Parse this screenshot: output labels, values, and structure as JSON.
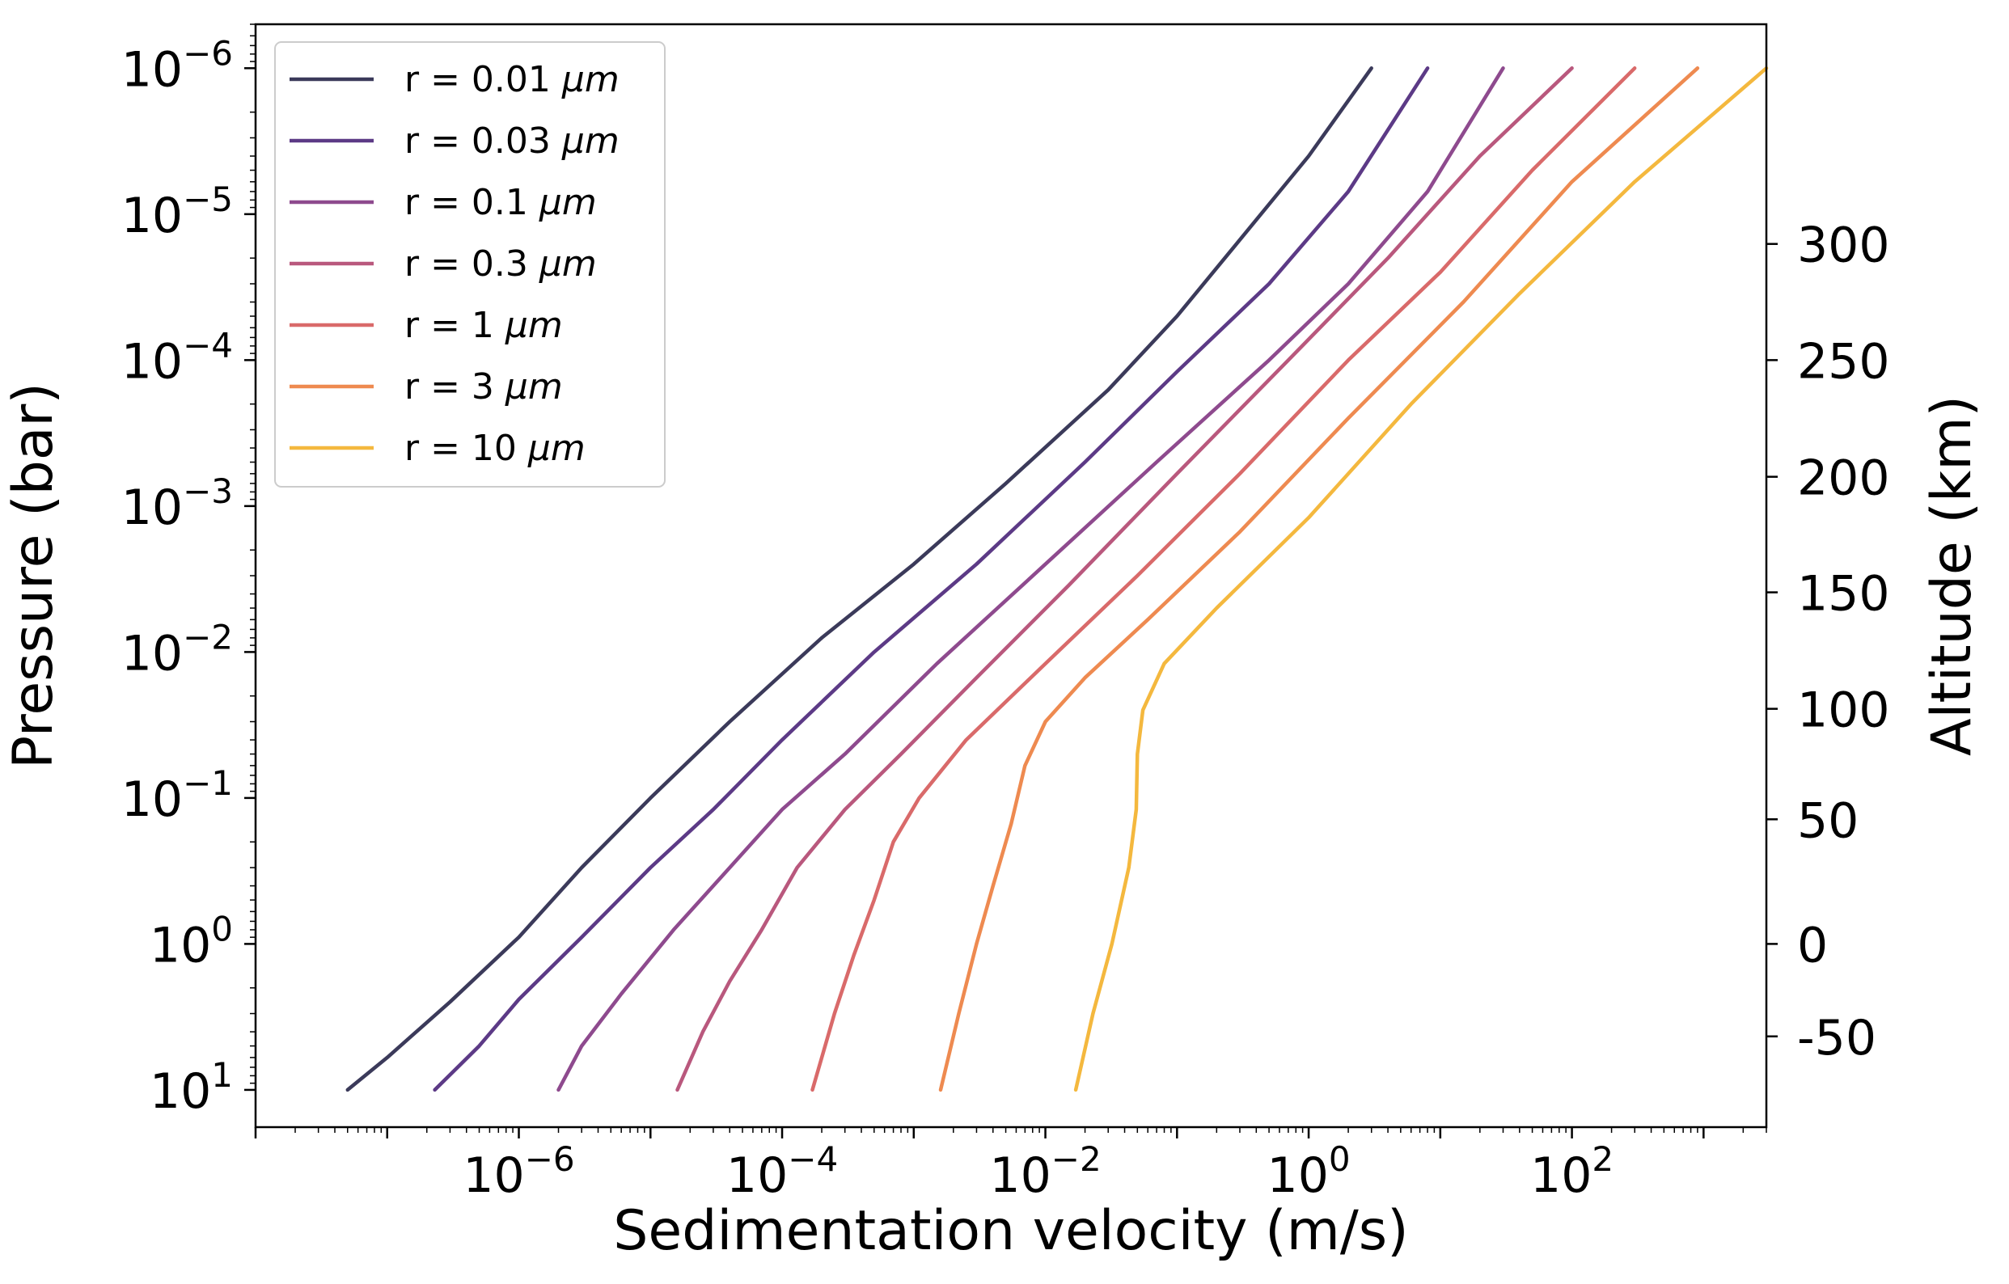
{
  "chart_data": {
    "type": "line",
    "title": "",
    "xlabel": "Sedimentation velocity (m/s)",
    "ylabel": "Pressure (bar)",
    "y2label": "Altitude (km)",
    "xscale": "log",
    "yscale": "log",
    "yinverted": true,
    "xlim": [
      1e-08,
      3000
    ],
    "ylim": [
      18,
      5e-07
    ],
    "x_tick_labels": [
      {
        "base": "10",
        "exp": "−6",
        "value": 1e-06
      },
      {
        "base": "10",
        "exp": "−4",
        "value": 0.0001
      },
      {
        "base": "10",
        "exp": "−2",
        "value": 0.01
      },
      {
        "base": "10",
        "exp": "0",
        "value": 1
      },
      {
        "base": "10",
        "exp": "2",
        "value": 100
      }
    ],
    "y_tick_labels": [
      {
        "base": "10",
        "exp": "−6",
        "value": 1e-06
      },
      {
        "base": "10",
        "exp": "−5",
        "value": 1e-05
      },
      {
        "base": "10",
        "exp": "−4",
        "value": 0.0001
      },
      {
        "base": "10",
        "exp": "−3",
        "value": 0.001
      },
      {
        "base": "10",
        "exp": "−2",
        "value": 0.01
      },
      {
        "base": "10",
        "exp": "−1",
        "value": 0.1
      },
      {
        "base": "10",
        "exp": "0",
        "value": 1
      },
      {
        "base": "10",
        "exp": "1",
        "value": 10
      }
    ],
    "y2_ticks": [
      {
        "label": "300",
        "pressure": 1.6e-05
      },
      {
        "label": "250",
        "pressure": 0.0001
      },
      {
        "label": "200",
        "pressure": 0.00063
      },
      {
        "label": "150",
        "pressure": 0.0039
      },
      {
        "label": "100",
        "pressure": 0.0245
      },
      {
        "label": "50",
        "pressure": 0.14
      },
      {
        "label": "0",
        "pressure": 1.0
      },
      {
        "label": "-50",
        "pressure": 4.3
      }
    ],
    "legend": {
      "location": "upper left"
    },
    "series": [
      {
        "name": "r = 0.01 μm",
        "label_text": "r = 0.01 ",
        "unit_text": "μm",
        "color": "#3b3a5a",
        "points": [
          [
            5e-08,
            10
          ],
          [
            1e-07,
            6
          ],
          [
            3e-07,
            2.5
          ],
          [
            1e-06,
            0.9
          ],
          [
            3e-06,
            0.3
          ],
          [
            1e-05,
            0.1
          ],
          [
            4e-05,
            0.03
          ],
          [
            0.0002,
            0.008
          ],
          [
            0.001,
            0.0025
          ],
          [
            0.005,
            0.0007
          ],
          [
            0.03,
            0.00016
          ],
          [
            0.1,
            5e-05
          ],
          [
            0.3,
            1.5e-05
          ],
          [
            1,
            4e-06
          ],
          [
            3,
            1e-06
          ]
        ]
      },
      {
        "name": "r = 0.03 μm",
        "label_text": "r = 0.03 ",
        "unit_text": "μm",
        "color": "#5c3a86",
        "points": [
          [
            2.3e-07,
            10
          ],
          [
            5e-07,
            5
          ],
          [
            1e-06,
            2.4
          ],
          [
            3e-06,
            0.9
          ],
          [
            1e-05,
            0.3
          ],
          [
            3e-05,
            0.12
          ],
          [
            0.0001,
            0.04
          ],
          [
            0.0005,
            0.01
          ],
          [
            0.003,
            0.0025
          ],
          [
            0.02,
            0.0005
          ],
          [
            0.1,
            0.00012
          ],
          [
            0.5,
            3e-05
          ],
          [
            2,
            7e-06
          ],
          [
            8,
            1e-06
          ]
        ]
      },
      {
        "name": "r = 0.1 μm",
        "label_text": "r = 0.1 ",
        "unit_text": "μm",
        "color": "#8e4a8e",
        "points": [
          [
            2e-06,
            10
          ],
          [
            3e-06,
            5
          ],
          [
            6e-06,
            2.2
          ],
          [
            1.5e-05,
            0.8
          ],
          [
            4e-05,
            0.3
          ],
          [
            0.0001,
            0.12
          ],
          [
            0.0003,
            0.05
          ],
          [
            0.0015,
            0.012
          ],
          [
            0.01,
            0.0025
          ],
          [
            0.07,
            0.0005
          ],
          [
            0.5,
            0.0001
          ],
          [
            2,
            3e-05
          ],
          [
            8,
            7e-06
          ],
          [
            30,
            1e-06
          ]
        ]
      },
      {
        "name": "r = 0.3 μm",
        "label_text": "r = 0.3 ",
        "unit_text": "μm",
        "color": "#b9587d",
        "points": [
          [
            1.6e-05,
            10
          ],
          [
            2.5e-05,
            4
          ],
          [
            4e-05,
            1.8
          ],
          [
            7e-05,
            0.8
          ],
          [
            0.00013,
            0.3
          ],
          [
            0.0003,
            0.12
          ],
          [
            0.0008,
            0.05
          ],
          [
            0.003,
            0.015
          ],
          [
            0.015,
            0.0035
          ],
          [
            0.1,
            0.0006
          ],
          [
            0.7,
            0.0001
          ],
          [
            4,
            2e-05
          ],
          [
            20,
            4e-06
          ],
          [
            100,
            1e-06
          ]
        ]
      },
      {
        "name": "r = 1 μm",
        "label_text": "r = 1 ",
        "unit_text": "μm",
        "color": "#d96a6a",
        "points": [
          [
            0.00017,
            10
          ],
          [
            0.00025,
            3
          ],
          [
            0.00035,
            1.2
          ],
          [
            0.0005,
            0.5
          ],
          [
            0.0007,
            0.2
          ],
          [
            0.0011,
            0.1
          ],
          [
            0.0025,
            0.04
          ],
          [
            0.01,
            0.012
          ],
          [
            0.05,
            0.003
          ],
          [
            0.3,
            0.0006
          ],
          [
            2,
            0.0001
          ],
          [
            10,
            2.5e-05
          ],
          [
            50,
            5e-06
          ],
          [
            300,
            1e-06
          ]
        ]
      },
      {
        "name": "r = 3 μm",
        "label_text": "r = 3 ",
        "unit_text": "μm",
        "color": "#ee8a50",
        "points": [
          [
            0.0016,
            10
          ],
          [
            0.0022,
            3
          ],
          [
            0.003,
            1
          ],
          [
            0.004,
            0.4
          ],
          [
            0.0055,
            0.15
          ],
          [
            0.007,
            0.06
          ],
          [
            0.01,
            0.03
          ],
          [
            0.02,
            0.015
          ],
          [
            0.06,
            0.006
          ],
          [
            0.3,
            0.0015
          ],
          [
            2,
            0.00025
          ],
          [
            15,
            4e-05
          ],
          [
            100,
            6e-06
          ],
          [
            900,
            1e-06
          ]
        ]
      },
      {
        "name": "r = 10 μm",
        "label_text": "r = 10 ",
        "unit_text": "μm",
        "color": "#f4b83e",
        "points": [
          [
            0.017,
            10
          ],
          [
            0.023,
            3
          ],
          [
            0.032,
            1
          ],
          [
            0.043,
            0.3
          ],
          [
            0.049,
            0.12
          ],
          [
            0.05,
            0.05
          ],
          [
            0.055,
            0.025
          ],
          [
            0.08,
            0.012
          ],
          [
            0.2,
            0.005
          ],
          [
            1,
            0.0012
          ],
          [
            6,
            0.0002
          ],
          [
            40,
            3.5e-05
          ],
          [
            300,
            6e-06
          ],
          [
            3000,
            1e-06
          ]
        ]
      }
    ]
  }
}
